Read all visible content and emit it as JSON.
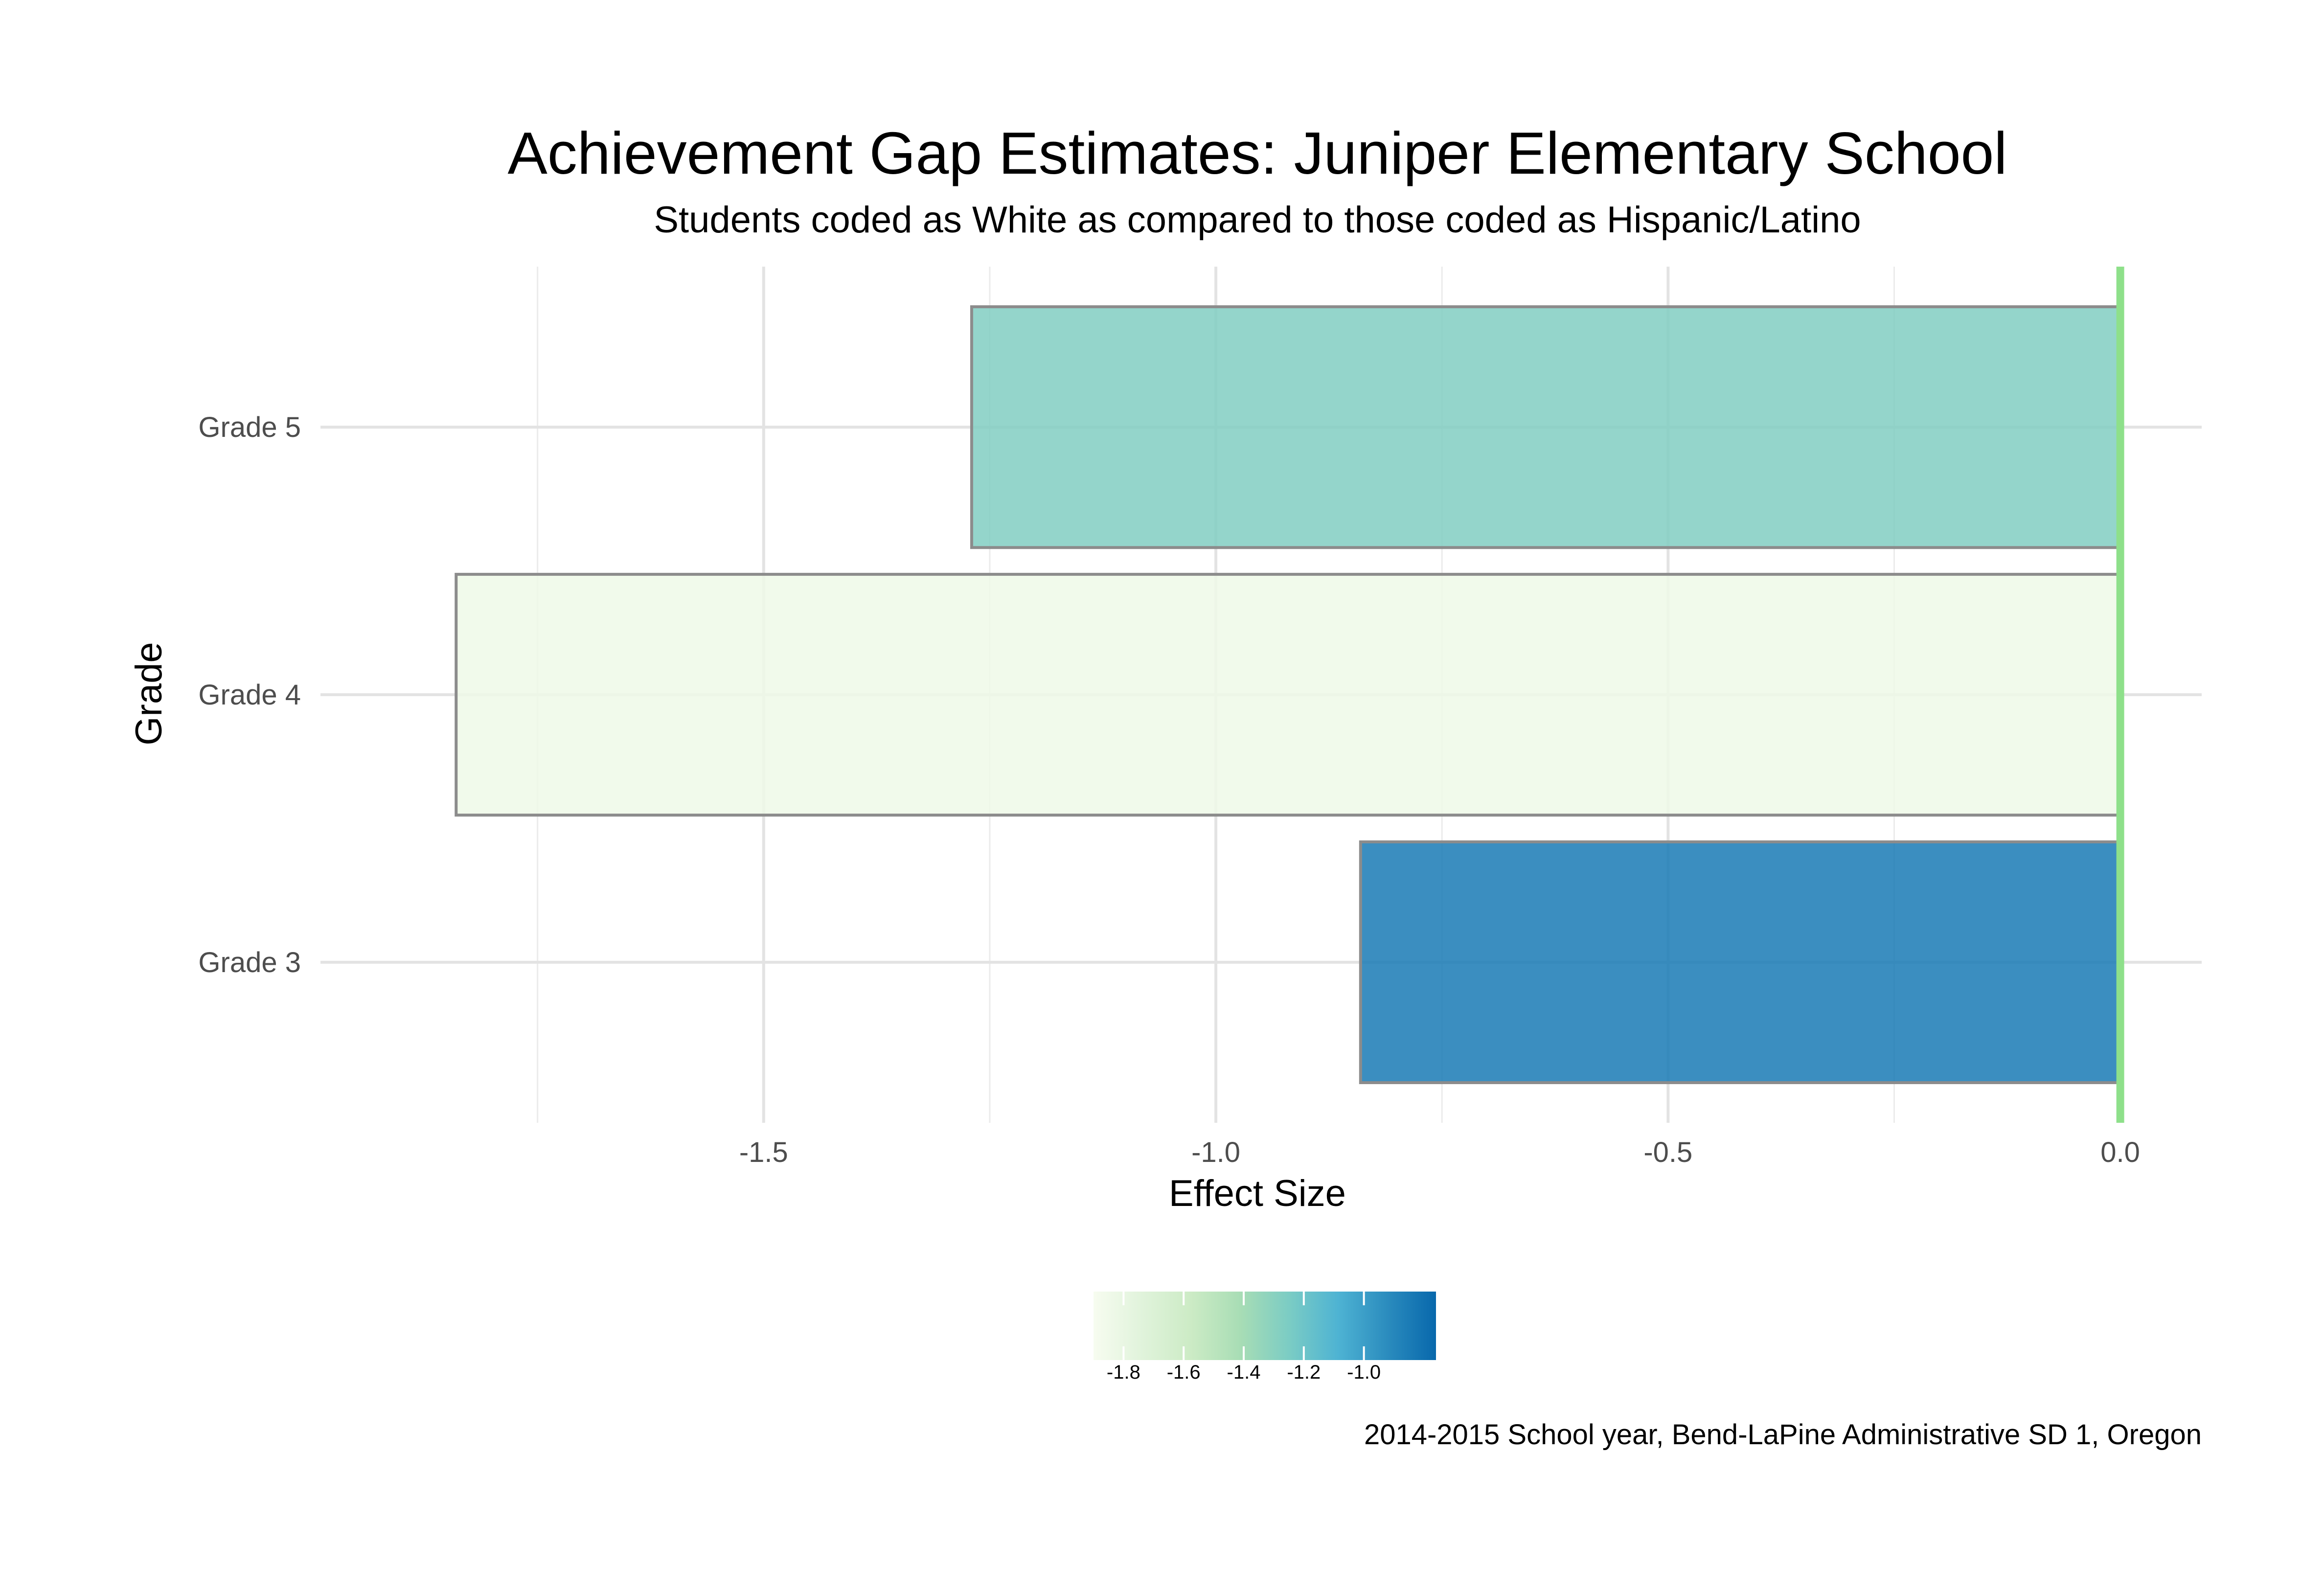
{
  "chart_data": {
    "type": "bar",
    "orientation": "horizontal",
    "title": "Achievement Gap Estimates: Juniper Elementary School",
    "subtitle": "Students coded as White as compared to those coded as Hispanic/Latino",
    "xlabel": "Effect Size",
    "ylabel": "Grade",
    "caption": "2014-2015 School year, Bend-LaPine Administrative SD 1, Oregon",
    "categories": [
      "Grade 3",
      "Grade 4",
      "Grade 5"
    ],
    "values": [
      -0.84,
      -1.84,
      -1.27
    ],
    "xlim": [
      -1.99,
      0.09
    ],
    "x_ticks": [
      {
        "value": -1.5,
        "label": "-1.5"
      },
      {
        "value": -1.0,
        "label": "-1.0"
      },
      {
        "value": -0.5,
        "label": "-0.5"
      },
      {
        "value": 0.0,
        "label": "0.0"
      }
    ],
    "x_minor_ticks": [
      -1.75,
      -1.25,
      -0.75,
      -0.25
    ],
    "reference_line": {
      "value": 0,
      "color": "#8ee08a"
    },
    "grid": true,
    "bar_outline_color": "#8c8c8c",
    "legend": {
      "type": "colorbar",
      "placement": "bottom",
      "range": [
        -1.9,
        -0.76
      ],
      "ticks": [
        {
          "value": -1.8,
          "label": "-1.8"
        },
        {
          "value": -1.6,
          "label": "-1.6"
        },
        {
          "value": -1.4,
          "label": "-1.4"
        },
        {
          "value": -1.2,
          "label": "-1.2"
        },
        {
          "value": -1.0,
          "label": "-1.0"
        }
      ],
      "colors": [
        "#f7fcf0",
        "#e0f3db",
        "#ccebc5",
        "#a8ddb5",
        "#7bccc4",
        "#4eb3d3",
        "#2b8cbe",
        "#0868ac"
      ]
    }
  }
}
